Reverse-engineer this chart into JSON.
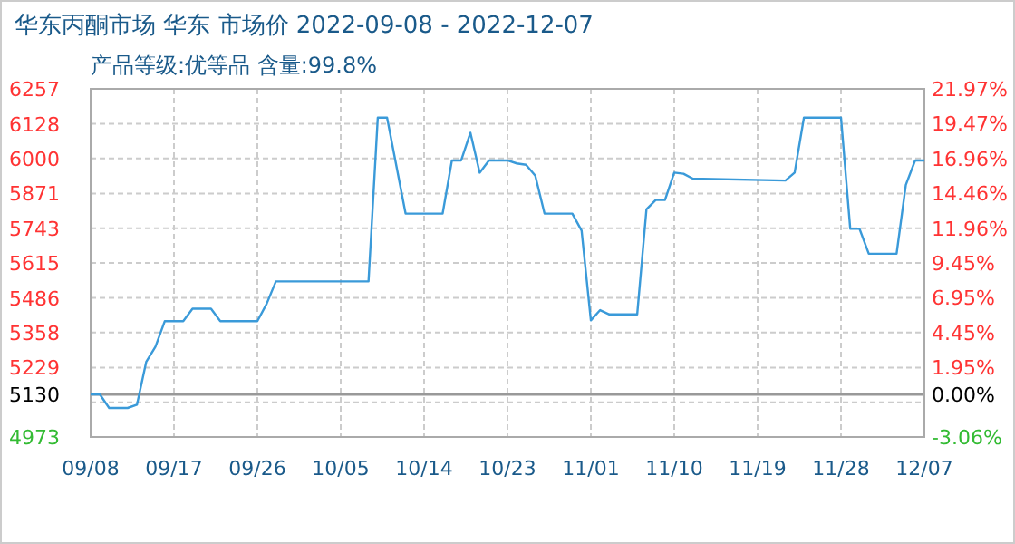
{
  "chart_data": {
    "type": "line",
    "title": "华东丙酮市场 华东 市场价 2022-09-08 - 2022-12-07",
    "subtitle": "产品等级:优等品 含量:99.8%",
    "x": [
      "2022-09-08",
      "2022-09-09",
      "2022-09-10",
      "2022-09-12",
      "2022-09-13",
      "2022-09-14",
      "2022-09-15",
      "2022-09-16",
      "2022-09-18",
      "2022-09-19",
      "2022-09-21",
      "2022-09-22",
      "2022-09-26",
      "2022-09-27",
      "2022-09-28",
      "2022-10-08",
      "2022-10-09",
      "2022-10-10",
      "2022-10-12",
      "2022-10-16",
      "2022-10-17",
      "2022-10-18",
      "2022-10-19",
      "2022-10-20",
      "2022-10-21",
      "2022-10-23",
      "2022-10-24",
      "2022-10-25",
      "2022-10-26",
      "2022-10-27",
      "2022-10-30",
      "2022-10-31",
      "2022-11-01",
      "2022-11-02",
      "2022-11-03",
      "2022-11-06",
      "2022-11-07",
      "2022-11-08",
      "2022-11-09",
      "2022-11-10",
      "2022-11-11",
      "2022-11-12",
      "2022-11-22",
      "2022-11-23",
      "2022-11-24",
      "2022-11-28",
      "2022-11-29",
      "2022-11-30",
      "2022-12-01",
      "2022-12-04",
      "2022-12-05",
      "2022-12-06",
      "2022-12-07"
    ],
    "series": [
      {
        "color": "#3a9ad9",
        "values": [
          5130,
          5130,
          5080,
          5080,
          5092,
          5250,
          5306,
          5400,
          5400,
          5446,
          5446,
          5400,
          5400,
          5464,
          5547,
          5547,
          6151,
          6151,
          5797,
          5797,
          5993,
          5993,
          6095,
          5948,
          5993,
          5993,
          5982,
          5977,
          5937,
          5797,
          5797,
          5734,
          5403,
          5441,
          5425,
          5425,
          5813,
          5847,
          5847,
          5948,
          5944,
          5926,
          5919,
          5948,
          6151,
          6151,
          5741,
          5741,
          5649,
          5649,
          5903,
          5993,
          5993
        ]
      }
    ],
    "xlim": [
      "2022-09-08",
      "2022-12-07"
    ],
    "xticks": [
      {
        "value": "2022-09-08",
        "label": "09/08"
      },
      {
        "value": "2022-09-17",
        "label": "09/17"
      },
      {
        "value": "2022-09-26",
        "label": "09/26"
      },
      {
        "value": "2022-10-05",
        "label": "10/05"
      },
      {
        "value": "2022-10-14",
        "label": "10/14"
      },
      {
        "value": "2022-10-23",
        "label": "10/23"
      },
      {
        "value": "2022-11-01",
        "label": "11/01"
      },
      {
        "value": "2022-11-10",
        "label": "11/10"
      },
      {
        "value": "2022-11-19",
        "label": "11/19"
      },
      {
        "value": "2022-11-28",
        "label": "11/28"
      },
      {
        "value": "2022-12-07",
        "label": "12/07"
      }
    ],
    "ylim": [
      4973,
      6257
    ],
    "yticks": [
      4973,
      {
        "value": 5101,
        "label": null
      },
      5130,
      5229,
      5358,
      5486,
      5615,
      5743,
      5871,
      6000,
      6128,
      6257
    ],
    "y2lim": [
      -3.06,
      21.97
    ],
    "y2ticks": [
      {
        "value": -3.06,
        "label": "-3.06%"
      },
      {
        "value": 0,
        "label": "0.00%"
      },
      {
        "value": 1.95,
        "label": "1.95%"
      },
      {
        "value": 4.45,
        "label": "4.45%"
      },
      {
        "value": 6.95,
        "label": "6.95%"
      },
      {
        "value": 9.45,
        "label": "9.45%"
      },
      {
        "value": 11.96,
        "label": "11.96%"
      },
      {
        "value": 14.46,
        "label": "14.46%"
      },
      {
        "value": 16.96,
        "label": "16.96%"
      },
      {
        "value": 19.47,
        "label": "19.47%"
      },
      {
        "value": 21.97,
        "label": "21.97%"
      }
    ],
    "ref_lines": [
      {
        "axis": "y",
        "value": 5130,
        "color": "#999999"
      }
    ],
    "grid": true,
    "marker": "none",
    "line_style": "solid"
  }
}
